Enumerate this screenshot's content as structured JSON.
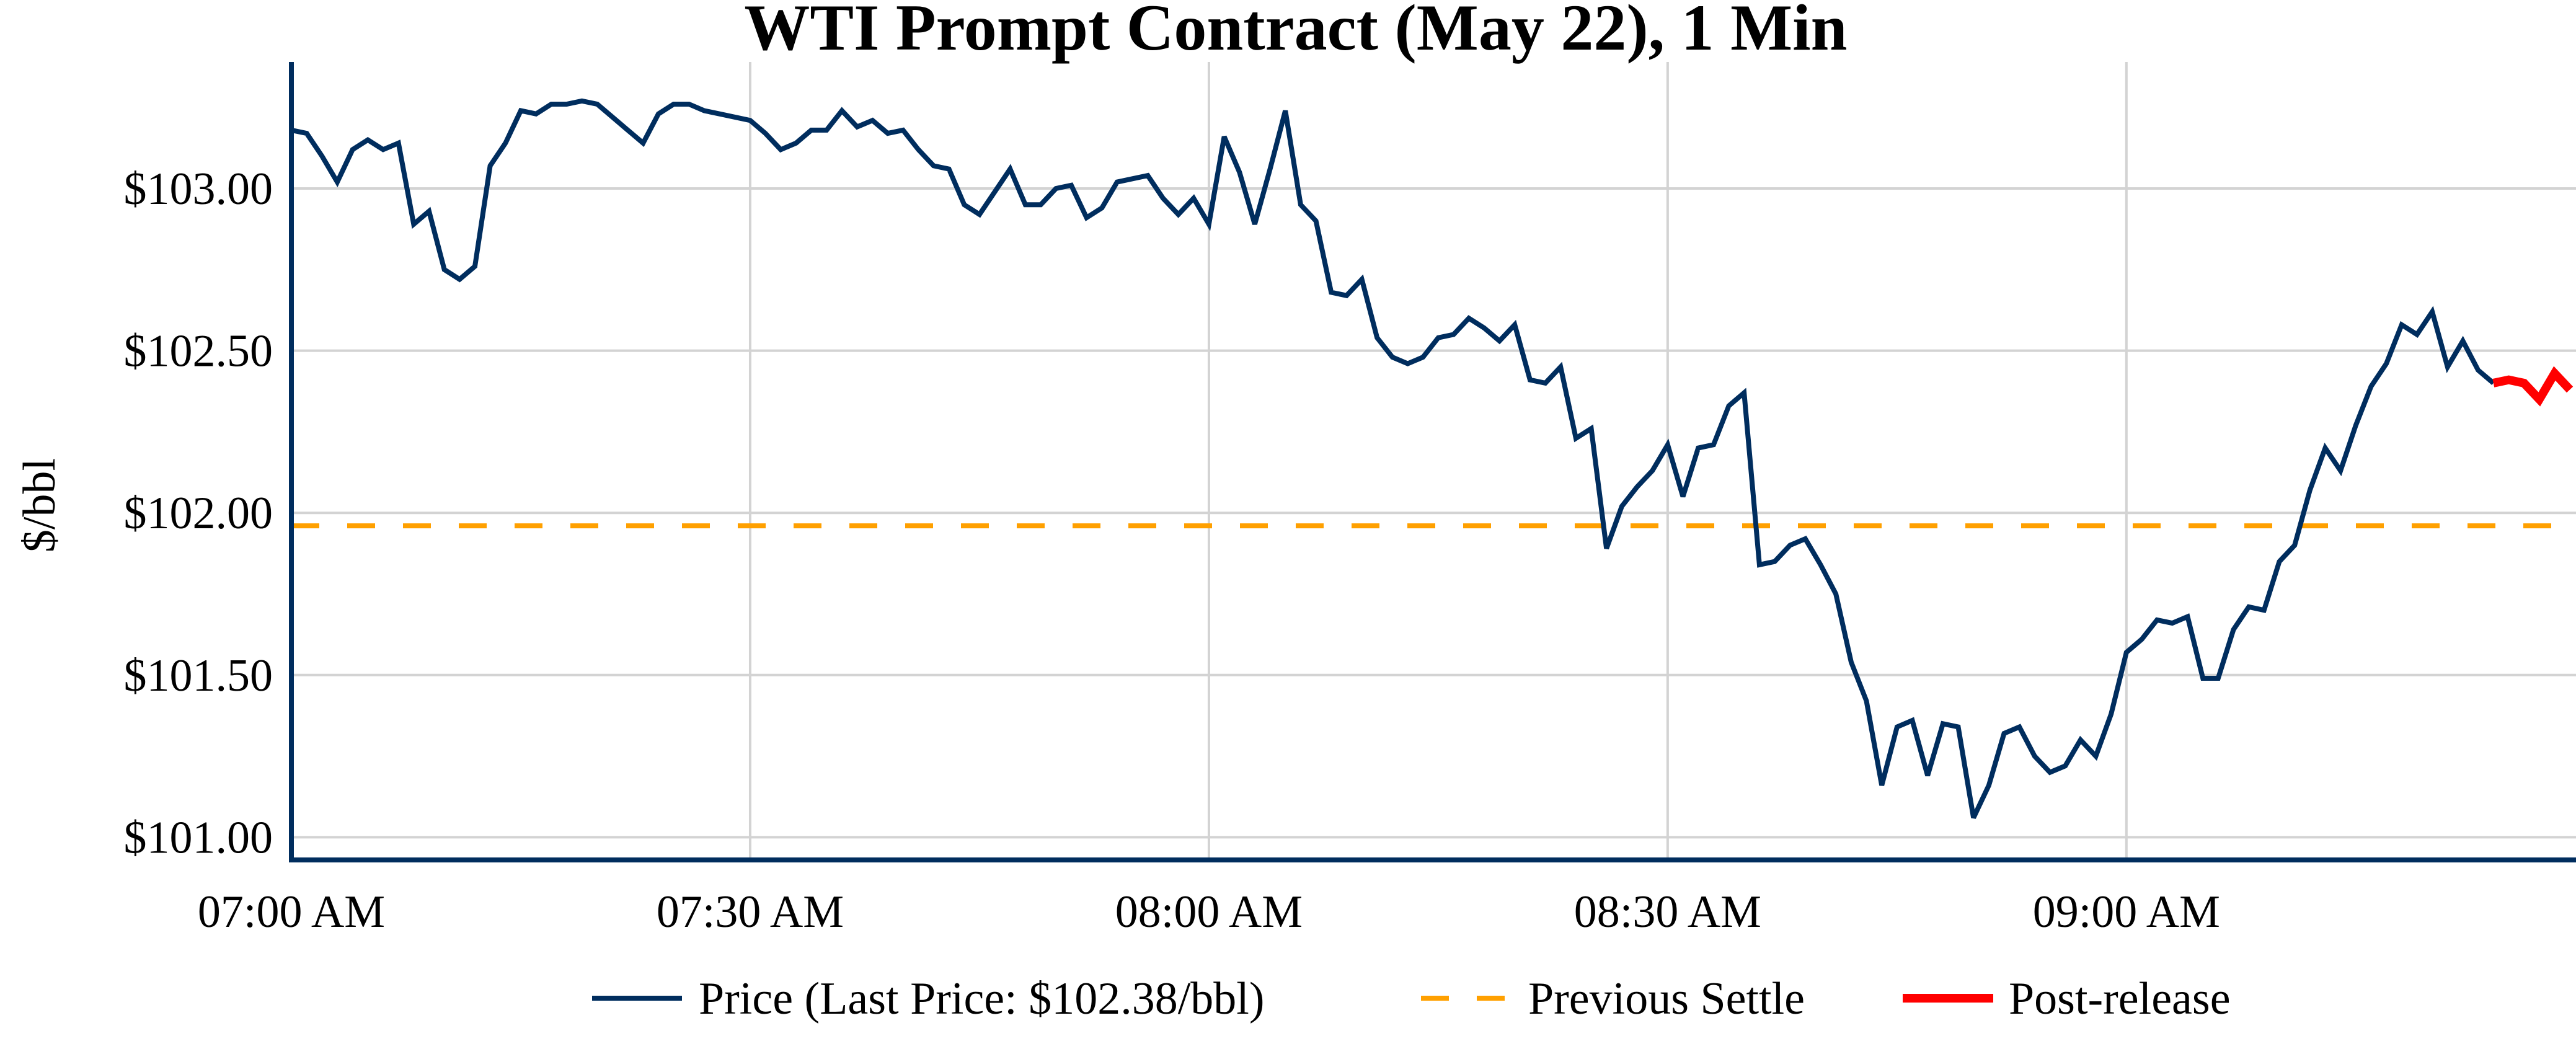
{
  "chart_data": {
    "type": "line",
    "title": "WTI Prompt Contract (May 22), 1 Min",
    "xlabel": "",
    "ylabel": "$/bbl",
    "xlim": [
      "07:00",
      "09:29"
    ],
    "ylim": [
      100.93,
      103.39
    ],
    "grid": true,
    "legend_placement": "bottom",
    "x_ticks": [
      {
        "time": "07:00",
        "label": "07:00 AM"
      },
      {
        "time": "07:30",
        "label": "07:30 AM"
      },
      {
        "time": "08:00",
        "label": "08:00 AM"
      },
      {
        "time": "08:30",
        "label": "08:30 AM"
      },
      {
        "time": "09:00",
        "label": "09:00 AM"
      }
    ],
    "y_ticks": [
      {
        "value": 101.0,
        "label": "$101.00"
      },
      {
        "value": 101.5,
        "label": "$101.50"
      },
      {
        "value": 102.0,
        "label": "$102.00"
      },
      {
        "value": 102.5,
        "label": "$102.50"
      },
      {
        "value": 103.0,
        "label": "$103.00"
      }
    ],
    "colors": {
      "price": "#002d5e",
      "settle": "#ffa000",
      "post": "#ff0000",
      "grid": "#d3d3d3",
      "axis": "#002d5e"
    },
    "series": [
      {
        "name": "Price (Last Price: $102.38/bbl)",
        "start": "07:00",
        "interval_minutes": 1,
        "values": [
          103.18,
          103.17,
          103.1,
          103.02,
          103.12,
          103.15,
          103.12,
          103.14,
          102.89,
          102.93,
          102.75,
          102.72,
          102.76,
          103.07,
          103.14,
          103.24,
          103.23,
          103.26,
          103.26,
          103.27,
          103.26,
          103.22,
          103.18,
          103.14,
          103.23,
          103.26,
          103.26,
          103.24,
          103.23,
          103.22,
          103.21,
          103.17,
          103.12,
          103.14,
          103.18,
          103.18,
          103.24,
          103.19,
          103.21,
          103.17,
          103.18,
          103.12,
          103.07,
          103.06,
          102.95,
          102.92,
          102.99,
          103.06,
          102.95,
          102.95,
          103.0,
          103.01,
          102.91,
          102.94,
          103.02,
          103.03,
          103.04,
          102.97,
          102.92,
          102.97,
          102.89,
          103.16,
          103.05,
          102.89,
          103.06,
          103.24,
          102.95,
          102.9,
          102.68,
          102.67,
          102.72,
          102.54,
          102.48,
          102.46,
          102.48,
          102.54,
          102.55,
          102.6,
          102.57,
          102.53,
          102.58,
          102.41,
          102.4,
          102.45,
          102.23,
          102.26,
          101.89,
          102.02,
          102.08,
          102.13,
          102.21,
          102.05,
          102.2,
          102.21,
          102.33,
          102.37,
          101.84,
          101.85,
          101.9,
          101.92,
          101.84,
          101.75,
          101.54,
          101.42,
          101.16,
          101.34,
          101.36,
          101.19,
          101.35,
          101.34,
          101.06,
          101.16,
          101.32,
          101.34,
          101.25,
          101.2,
          101.22,
          101.3,
          101.25,
          101.38,
          101.57,
          101.61,
          101.67,
          101.66,
          101.68,
          101.49,
          101.49,
          101.64,
          101.71,
          101.7,
          101.85,
          101.9,
          102.07,
          102.2,
          102.13,
          102.27,
          102.39,
          102.46,
          102.58,
          102.55,
          102.62,
          102.45,
          102.53,
          102.44,
          102.4
        ]
      },
      {
        "name": "Previous Settle",
        "constant": 101.96
      },
      {
        "name": "Post-release",
        "start": "09:24",
        "interval_minutes": 1,
        "values": [
          102.4,
          102.41,
          102.4,
          102.35,
          102.43,
          102.38
        ]
      }
    ]
  }
}
